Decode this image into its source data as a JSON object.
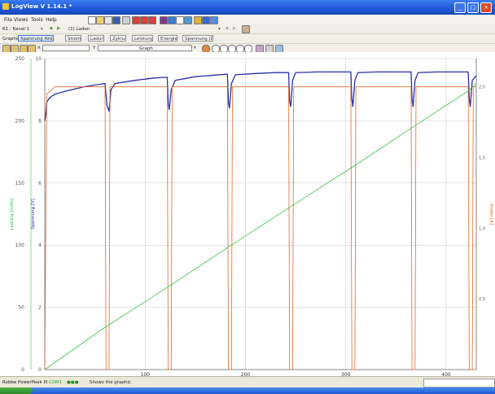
{
  "window": {
    "title": "LogView V 1.14.1 *"
  },
  "menu": {
    "file": "File",
    "views": "Views",
    "tools": "Tools",
    "help": "Help"
  },
  "toolbar2": {
    "channel": "K1 : Kanal 1",
    "session": "(1) Laden"
  },
  "toolbar3": {
    "graphs_label": "Graphs:",
    "items": [
      "Spannung Akku",
      "Strom",
      "Ladung",
      "Zyklus",
      "Leistung",
      "Energie",
      "Spannung (Dr)"
    ]
  },
  "toolbar4": {
    "x_label": "X",
    "y_label": "Y",
    "graph_label": "Graph"
  },
  "status": {
    "device": "Robbe PowerPeak III",
    "port": "COM1",
    "message": "Shows the graphic"
  },
  "colors": {
    "voltage": "#2b2fa8",
    "current": "#e06a2a",
    "charge": "#35c24a",
    "axis_left1": "#35c24a",
    "axis_left2": "#2b2fa8",
    "axis_right": "#e06a2a",
    "grid": "#c8c8c8"
  },
  "chart_data": {
    "type": "line",
    "xlabel": "",
    "x_ticks": [
      100,
      200,
      300,
      400
    ],
    "xlim": [
      0,
      430
    ],
    "axes": [
      {
        "side": "left-outer",
        "label": "Ladung [mAh]",
        "ticks": [
          0,
          50,
          100,
          150,
          200,
          250
        ],
        "lim": [
          0,
          250
        ]
      },
      {
        "side": "left-inner",
        "label": "Spannung [V]",
        "ticks": [
          0,
          2,
          4,
          6,
          8,
          10
        ],
        "lim": [
          0,
          10
        ]
      },
      {
        "side": "right",
        "label": "Strom [A]",
        "ticks": [
          0.5,
          1.0,
          1.5,
          2.0
        ],
        "lim": [
          0,
          2.2
        ]
      }
    ],
    "series": [
      {
        "axis": "left-inner",
        "x": [
          0,
          1,
          2,
          5,
          10,
          20,
          40,
          60,
          62,
          64,
          66,
          70,
          90,
          110,
          122,
          123,
          124,
          126,
          130,
          150,
          170,
          182,
          183,
          184,
          186,
          190,
          210,
          230,
          243,
          244,
          245,
          247,
          250,
          270,
          290,
          305,
          306,
          307,
          309,
          312,
          330,
          350,
          365,
          366,
          367,
          369,
          372,
          390,
          410,
          422,
          423,
          424,
          426,
          430
        ],
        "y": [
          8.0,
          8.2,
          8.6,
          8.75,
          8.85,
          8.95,
          9.1,
          9.2,
          8.5,
          8.3,
          9.0,
          9.2,
          9.3,
          9.38,
          9.4,
          8.6,
          8.35,
          9.0,
          9.3,
          9.42,
          9.47,
          9.5,
          8.6,
          8.4,
          9.2,
          9.48,
          9.52,
          9.55,
          9.55,
          8.65,
          8.45,
          9.3,
          9.55,
          9.57,
          9.57,
          9.57,
          8.7,
          8.45,
          9.3,
          9.55,
          9.57,
          9.57,
          9.57,
          8.7,
          8.45,
          9.3,
          9.55,
          9.57,
          9.57,
          9.57,
          8.7,
          8.45,
          9.3,
          9.45
        ]
      },
      {
        "axis": "right",
        "x": [
          0,
          2,
          10,
          60,
          61,
          62,
          63,
          64,
          65,
          122,
          123,
          124,
          125,
          126,
          127,
          160,
          165,
          182,
          183,
          184,
          185,
          186,
          187,
          243,
          244,
          245,
          246,
          247,
          248,
          305,
          306,
          307,
          308,
          309,
          310,
          365,
          366,
          367,
          368,
          369,
          370,
          422,
          423,
          424,
          425,
          426,
          427,
          430
        ],
        "y": [
          0.0,
          1.95,
          2.0,
          2.0,
          0.0,
          0.0,
          0.0,
          0.0,
          2.0,
          2.0,
          0.0,
          0.0,
          0.0,
          0.0,
          2.0,
          2.0,
          2.0,
          2.0,
          0.0,
          0.0,
          0.0,
          0.0,
          2.0,
          2.0,
          0.0,
          0.0,
          0.0,
          0.0,
          2.0,
          2.0,
          0.0,
          0.0,
          0.0,
          0.0,
          2.0,
          2.0,
          0.0,
          0.0,
          0.0,
          0.0,
          2.0,
          2.0,
          0.0,
          0.0,
          0.0,
          0.0,
          2.0,
          2.0
        ]
      },
      {
        "axis": "left-outer",
        "x": [
          0,
          60,
          122,
          182,
          243,
          305,
          365,
          422,
          430
        ],
        "y": [
          0,
          34,
          66,
          98,
          130,
          162,
          194,
          224,
          230
        ]
      }
    ],
    "grid": true
  }
}
